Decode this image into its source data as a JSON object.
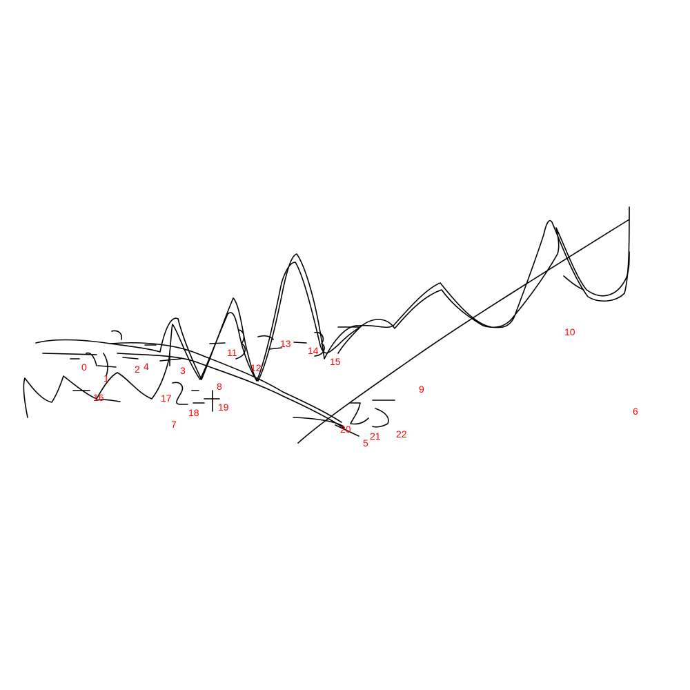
{
  "colors": {
    "background": "#ffffff",
    "stroke": "#000000",
    "label": "#ff0000"
  },
  "labels": [
    "0",
    "1",
    "2",
    "3",
    "4",
    "5",
    "6",
    "7",
    "8",
    "9",
    "10",
    "11",
    "12",
    "13",
    "14",
    "15",
    "16",
    "17",
    "18",
    "19",
    "20",
    "21",
    "22"
  ]
}
